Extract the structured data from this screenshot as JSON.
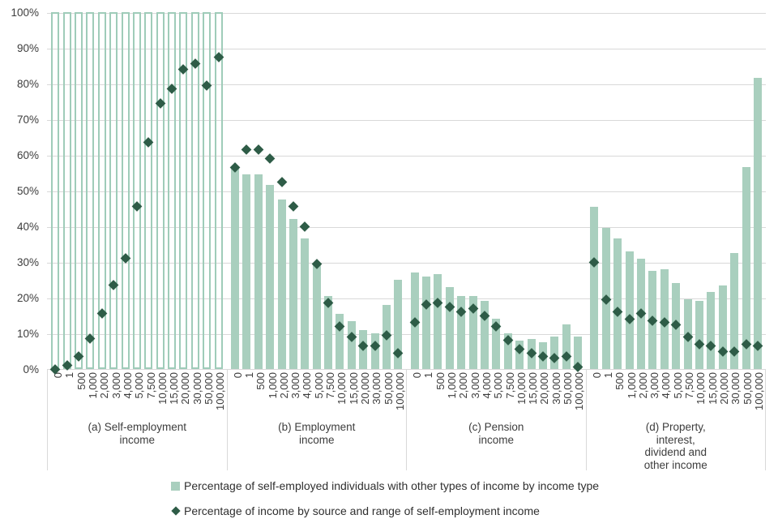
{
  "colors": {
    "bar_fill": "#a9cfbe",
    "bar_outline": "#9fccb9",
    "diamond": "#2e5c47",
    "gridline": "#d9d9d9",
    "separator": "#d9d9d9",
    "text": "#3d3d3d"
  },
  "y_axis": {
    "tick_labels": [
      "100%",
      "90%",
      "80%",
      "70%",
      "60%",
      "50%",
      "40%",
      "30%",
      "20%",
      "10%",
      "0%"
    ]
  },
  "chart_data": {
    "type": "bar+scatter",
    "grid": true,
    "ylim": [
      0,
      100
    ],
    "y_tick_interval": 10,
    "legend_position": "bottom-left",
    "categories": [
      "0",
      "1",
      "500",
      "1,000",
      "2,000",
      "3,000",
      "4,000",
      "5,000",
      "7,500",
      "10,000",
      "15,000",
      "20,000",
      "30,000",
      "50,000",
      "100,000"
    ],
    "series": [
      {
        "name": "Percentage of self-employed individuals with other types of income by income type",
        "type": "bar",
        "marker": "square"
      },
      {
        "name": "Percentage of income by source and range of self-employment income",
        "type": "scatter",
        "marker": "diamond"
      }
    ],
    "panels": [
      {
        "id": "a",
        "caption_lines": [
          "(a) Self-employment",
          "income"
        ],
        "bar_style": "outline",
        "bars": [
          100,
          100,
          100,
          100,
          100,
          100,
          100,
          100,
          100,
          100,
          100,
          100,
          100,
          100,
          100
        ],
        "points": [
          0,
          1,
          3.5,
          8.5,
          15.5,
          23.5,
          31,
          45.5,
          63.5,
          74.5,
          78.5,
          84,
          85.5,
          79.5,
          87.5
        ]
      },
      {
        "id": "b",
        "caption_lines": [
          "(b) Employment",
          "income"
        ],
        "bar_style": "solid",
        "bars": [
          56.5,
          54.5,
          54.5,
          51.5,
          47.5,
          42,
          36.5,
          29.5,
          20.5,
          15.5,
          13.5,
          11,
          10,
          18,
          25
        ],
        "points": [
          56.5,
          61.5,
          61.5,
          59,
          52.5,
          45.5,
          40,
          29.5,
          18.5,
          12,
          9,
          6.5,
          6.5,
          9.5,
          4.5
        ]
      },
      {
        "id": "c",
        "caption_lines": [
          "(c) Pension",
          "income"
        ],
        "bar_style": "solid",
        "bars": [
          27,
          26,
          26.5,
          23,
          20.5,
          20.5,
          19,
          14,
          10,
          8,
          8.5,
          7.5,
          9,
          12.5,
          9
        ],
        "points": [
          13,
          18,
          18.5,
          17.5,
          16,
          17,
          15,
          12,
          8,
          5.5,
          4.5,
          3.5,
          3,
          3.5,
          0.5
        ]
      },
      {
        "id": "d",
        "caption_lines": [
          "(d) Property,",
          "interest,",
          "dividend and",
          "other income"
        ],
        "bar_style": "solid",
        "bars": [
          45.5,
          39.5,
          36.5,
          33,
          31,
          27.5,
          28,
          24,
          19.5,
          19,
          21.5,
          23.5,
          32.5,
          56.5,
          81.5
        ],
        "points": [
          30,
          19.5,
          16,
          14,
          15.5,
          13.5,
          13,
          12.5,
          9,
          7,
          6.5,
          5,
          5,
          7,
          6.5
        ]
      }
    ]
  }
}
